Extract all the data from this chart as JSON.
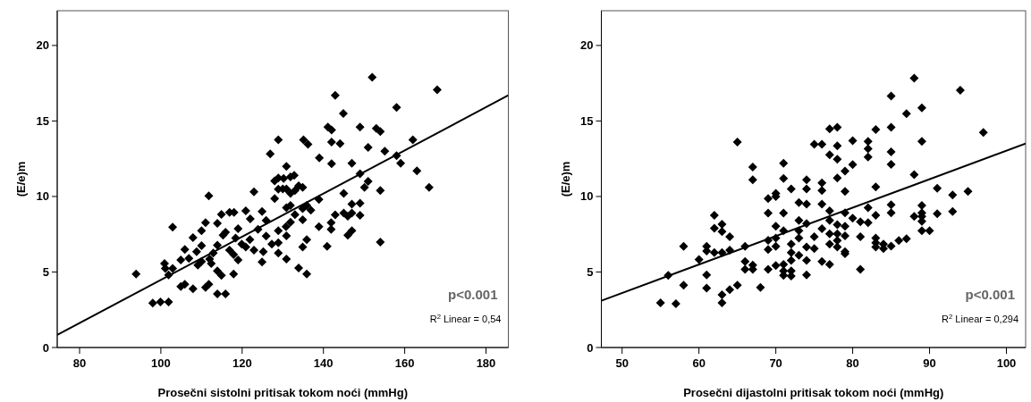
{
  "chart_data": [
    {
      "type": "scatter",
      "xlabel": "Prosečni sistolni pritisak tokom noći (mmHg)",
      "ylabel": "(E/e)m",
      "xlim": [
        74.5,
        185.5
      ],
      "ylim": [
        0,
        22.3
      ],
      "xticks": [
        80,
        100,
        120,
        140,
        160,
        180
      ],
      "yticks": [
        0,
        5,
        10,
        15,
        20
      ],
      "annotations": [
        "p<0.001",
        "R$^{2}$ Linear = 0,54"
      ],
      "series": [
        {
          "marker": "diamond",
          "color": "#000000",
          "x": [
            93.9,
            98,
            99.9,
            101.9,
            100.9,
            101.1,
            101.9,
            102.9,
            102.9,
            104.9,
            105.9,
            104.9,
            105.9,
            106.9,
            107.9,
            107.9,
            108.8,
            109.1,
            110,
            110,
            110,
            111,
            111,
            111.8,
            111.8,
            112,
            112.4,
            112.9,
            113.9,
            113.9,
            113.9,
            114.9,
            113.9,
            115.9,
            114.9,
            115.3,
            115.9,
            116.9,
            118,
            116.9,
            117.9,
            117.9,
            119,
            119,
            118.4,
            119.9,
            120.9,
            120.9,
            122,
            121.9,
            122.9,
            122.9,
            123.9,
            124.9,
            124.9,
            125.2,
            125.9,
            125.9,
            126.9,
            128,
            128,
            128.9,
            128.9,
            128.9,
            128.9,
            128.9,
            127.3,
            128.9,
            130.9,
            130.2,
            131.9,
            132.8,
            130,
            130.9,
            131.9,
            133,
            133.9,
            134.9,
            135.1,
            136.2,
            130.9,
            131.9,
            133,
            134.9,
            135.9,
            136.9,
            130.8,
            131.9,
            130.9,
            130.9,
            134.9,
            134.9,
            135.9,
            133.9,
            135.9,
            138.9,
            138.9,
            140.9,
            141.9,
            141.9,
            142.9,
            139,
            142,
            141.1,
            142,
            142,
            144.1,
            142.9,
            144.9,
            145,
            145,
            146,
            147,
            147,
            149,
            149,
            146,
            147,
            147,
            149,
            151,
            149,
            150.1,
            151,
            153,
            154,
            154,
            154,
            152,
            155.1,
            158,
            158,
            159,
            162,
            163,
            166,
            168
          ],
          "values": [
            4.87,
            2.94,
            3.02,
            3.02,
            5.56,
            5.23,
            4.81,
            5.23,
            7.97,
            4.04,
            4.18,
            5.8,
            6.49,
            5.9,
            7.28,
            3.89,
            6.35,
            5.46,
            5.7,
            6.75,
            7.73,
            8.26,
            3.98,
            4.18,
            10.04,
            5.86,
            5.56,
            6.25,
            8.22,
            6.78,
            5.07,
            4.77,
            3.55,
            3.55,
            8.82,
            7.44,
            7.63,
            8.95,
            8.95,
            6.45,
            6.15,
            4.87,
            7.87,
            5.8,
            7.24,
            6.84,
            6.65,
            9.05,
            8.52,
            7.14,
            10.3,
            6.45,
            7.83,
            9.01,
            5.66,
            6.35,
            7.38,
            8.42,
            12.82,
            9.86,
            11.03,
            13.75,
            11.22,
            10.49,
            7.73,
            6.94,
            6.84,
            6.25,
            12,
            11.2,
            11.3,
            11.4,
            10.5,
            10.5,
            10.2,
            10.4,
            10.7,
            10.6,
            13.75,
            13.45,
            9.25,
            9.4,
            8.8,
            9.2,
            9.4,
            9.1,
            8,
            8.3,
            7.4,
            5.86,
            8.46,
            6.65,
            7.14,
            5.27,
            4.87,
            9.8,
            8,
            6.7,
            7.83,
            8.26,
            8.78,
            12.56,
            12.17,
            14.6,
            14.4,
            13.6,
            13.5,
            16.7,
            15.5,
            10.2,
            8.9,
            8.7,
            8.9,
            9.5,
            9.55,
            8.76,
            7.44,
            7.73,
            12.2,
            14.6,
            13.25,
            11.5,
            10.6,
            11,
            14.5,
            14.3,
            10.4,
            6.98,
            17.9,
            13,
            15.9,
            12.7,
            12.2,
            13.75,
            11.7,
            10.6,
            17.06
          ]
        },
        {
          "type": "line",
          "color": "#000000",
          "x": [
            74.5,
            185.5
          ],
          "values": [
            0.83,
            16.7
          ]
        }
      ]
    },
    {
      "type": "scatter",
      "xlabel": "Prosečni dijastolni pritisak tokom noći (mmHg)",
      "ylabel": "(E/e)m",
      "xlim": [
        47.3,
        102.5
      ],
      "ylim": [
        0,
        22.3
      ],
      "xticks": [
        50,
        60,
        70,
        80,
        90,
        100
      ],
      "yticks": [
        0,
        5,
        10,
        15,
        20
      ],
      "annotations": [
        "p<0.001",
        "R$^{2}$ Linear = 0,294"
      ],
      "series": [
        {
          "marker": "diamond",
          "color": "#000000",
          "x": [
            55,
            57,
            56,
            58,
            58,
            60,
            61,
            61,
            61,
            61,
            62,
            62,
            62,
            63,
            63,
            63,
            63,
            63,
            64,
            64,
            64,
            65,
            65,
            66,
            66,
            66,
            67,
            67,
            67,
            67,
            68,
            69,
            69,
            69,
            69,
            69,
            70,
            70,
            70,
            70,
            70,
            70,
            71,
            71,
            71,
            71,
            71,
            71,
            71,
            72,
            72,
            72,
            72,
            72,
            72,
            73,
            73,
            73,
            73,
            73,
            74,
            74,
            74,
            74,
            74,
            74,
            74,
            75,
            75,
            75,
            76,
            76,
            76,
            76,
            76,
            76,
            77,
            77,
            77,
            77,
            77,
            77,
            77,
            78,
            78,
            78,
            78,
            78,
            78,
            78,
            78,
            79,
            79,
            79,
            79,
            79,
            79,
            79,
            80,
            80,
            80,
            81,
            81,
            81,
            82,
            82,
            82,
            82,
            82,
            83,
            83,
            83,
            83,
            83,
            83,
            84,
            84,
            85,
            85,
            85,
            85,
            85,
            85,
            85,
            86,
            87,
            87,
            88,
            88,
            88,
            89,
            89,
            89,
            89,
            89,
            89,
            89,
            90,
            91,
            91,
            93,
            93,
            94,
            95,
            97
          ],
          "values": [
            2.96,
            2.9,
            4.77,
            6.7,
            4.12,
            5.82,
            6.7,
            6.39,
            4.81,
            3.93,
            8.76,
            7.89,
            6.29,
            8.17,
            7.67,
            6.29,
            3.49,
            2.96,
            7.34,
            6.45,
            3.83,
            13.6,
            4.12,
            6.7,
            5.7,
            5.17,
            5.46,
            5.17,
            11.95,
            11.1,
            3.98,
            9.86,
            8.9,
            7.1,
            6.49,
            5.17,
            10.2,
            10,
            8.03,
            7.24,
            6.7,
            5.42,
            12.2,
            11.2,
            8.9,
            7.73,
            5.5,
            5.07,
            4.77,
            10.5,
            6.84,
            6.29,
            5.76,
            5.07,
            4.73,
            9.6,
            8.42,
            7.73,
            7.24,
            6.1,
            11.1,
            10.5,
            9.5,
            8.2,
            6.65,
            5.76,
            4.81,
            13.45,
            7.34,
            6.55,
            13.45,
            10.9,
            10.4,
            9.5,
            7.87,
            5.7,
            14.48,
            12.76,
            9.05,
            8.42,
            7.53,
            6.84,
            5.5,
            14.58,
            13.35,
            12.47,
            11.22,
            8.13,
            7.53,
            7.08,
            6.65,
            11.68,
            10.34,
            8.92,
            8.03,
            7.4,
            6.35,
            6.21,
            13.69,
            12.11,
            8.56,
            8.32,
            7.34,
            5.17,
            13.65,
            13.16,
            12.62,
            9.25,
            8.26,
            14.44,
            10.63,
            8.76,
            7.24,
            6.94,
            6.65,
            6.84,
            6.55,
            16.65,
            14.58,
            12.96,
            12.13,
            9.45,
            8.92,
            6.71,
            7.08,
            15.48,
            7.2,
            17.83,
            11.44,
            8.68,
            15.86,
            13.65,
            9.41,
            8.92,
            8.68,
            8.36,
            7.73,
            7.73,
            10.55,
            8.86,
            10.1,
            9.01,
            17.04,
            10.34,
            14.24
          ]
        },
        {
          "type": "line",
          "color": "#000000",
          "x": [
            47.3,
            102.5
          ],
          "values": [
            3.1,
            13.5
          ]
        }
      ]
    }
  ]
}
